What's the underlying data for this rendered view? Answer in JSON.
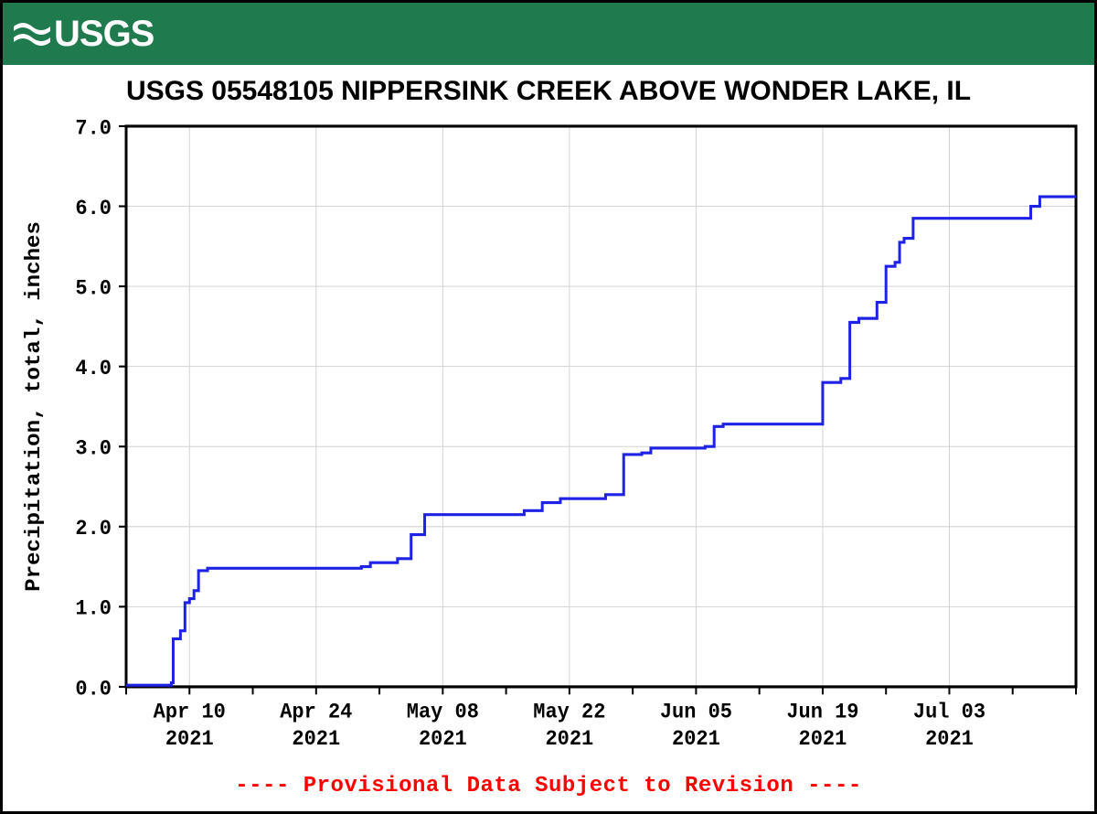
{
  "header": {
    "brand_text": "USGS"
  },
  "chart": {
    "type": "line-step",
    "title": "USGS 05548105 NIPPERSINK CREEK ABOVE WONDER LAKE, IL",
    "title_fontsize": 30,
    "y_axis": {
      "label": "Precipitation, total, inches",
      "label_fontsize": 23,
      "min": 0.0,
      "max": 7.0,
      "tick_step": 1.0,
      "tick_labels": [
        "0.0",
        "1.0",
        "2.0",
        "3.0",
        "4.0",
        "5.0",
        "6.0",
        "7.0"
      ],
      "tick_fontsize": 22
    },
    "x_axis": {
      "min": 0,
      "max": 105,
      "major_ticks": [
        7,
        21,
        35,
        49,
        63,
        77,
        91
      ],
      "tick_top_labels": [
        "Apr 10",
        "Apr 24",
        "May 08",
        "May 22",
        "Jun 05",
        "Jun 19",
        "Jul 03"
      ],
      "tick_bottom_labels": [
        "2021",
        "2021",
        "2021",
        "2021",
        "2021",
        "2021",
        "2021"
      ],
      "tick_fontsize": 22
    },
    "grid_color": "#d3d3d3",
    "axis_color": "#000000",
    "background_color": "#ffffff",
    "line_color": "#1e22e6",
    "line_width": 3,
    "series": {
      "x": [
        0,
        4,
        5,
        5.2,
        6,
        6.5,
        7,
        7.5,
        8,
        9,
        20,
        26,
        27,
        29,
        30,
        31.5,
        32,
        33,
        35,
        42,
        44,
        45,
        46,
        48,
        52,
        53,
        55,
        57,
        58,
        64,
        65,
        66,
        76,
        77,
        79,
        80,
        81,
        82,
        83,
        84,
        85,
        85.5,
        86,
        87,
        91,
        100,
        101,
        105
      ],
      "y": [
        0.02,
        0.02,
        0.05,
        0.6,
        0.7,
        1.05,
        1.1,
        1.2,
        1.45,
        1.48,
        1.48,
        1.5,
        1.55,
        1.55,
        1.6,
        1.9,
        1.9,
        2.15,
        2.15,
        2.15,
        2.2,
        2.2,
        2.3,
        2.35,
        2.35,
        2.4,
        2.9,
        2.92,
        2.98,
        3.0,
        3.25,
        3.28,
        3.28,
        3.8,
        3.85,
        4.55,
        4.6,
        4.6,
        4.8,
        5.25,
        5.3,
        5.55,
        5.6,
        5.85,
        5.85,
        6.0,
        6.12,
        6.12
      ]
    }
  },
  "footer": {
    "provisional_text": "---- Provisional Data Subject to Revision ----",
    "provisional_color": "#ff0000",
    "provisional_fontsize": 24
  }
}
